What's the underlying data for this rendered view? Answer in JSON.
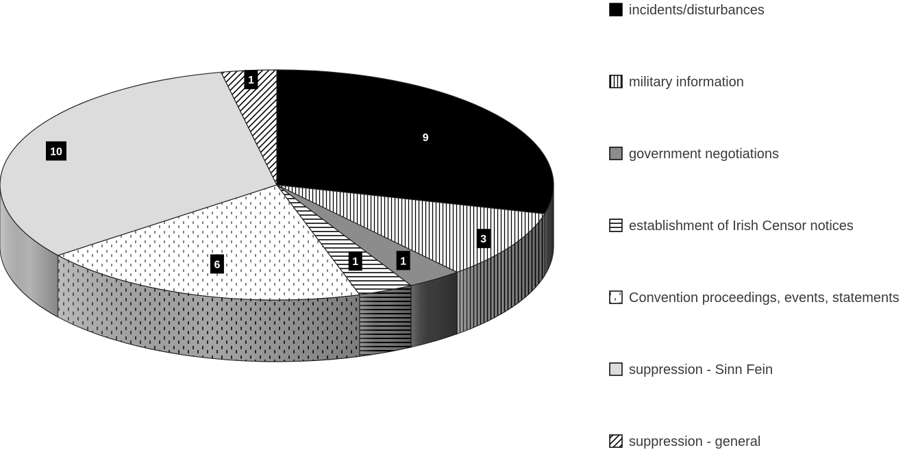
{
  "chart_data": {
    "type": "pie",
    "style": "3d",
    "legend_position": "right",
    "categories": [
      "incidents/disturbances",
      "military information",
      "government negotiations",
      "establishment of Irish Censor notices",
      "Convention proceedings, events, statements",
      "suppression - Sinn Fein",
      "suppression - general"
    ],
    "values": [
      9,
      3,
      1,
      1,
      6,
      10,
      1
    ],
    "data_labels": [
      "9",
      "3",
      "1",
      "1",
      "6",
      "10",
      "1"
    ],
    "patterns": [
      "solid-black",
      "vertical-lines",
      "solid-gray",
      "horizontal-lines",
      "dashed-dots",
      "solid-light-gray",
      "diagonal-lines"
    ],
    "colors": {
      "black": "#000000",
      "mid_gray": "#8c8c8c",
      "light_gray": "#dcdcdc",
      "outline": "#222222",
      "legend_text": "#3a3a3a"
    }
  }
}
